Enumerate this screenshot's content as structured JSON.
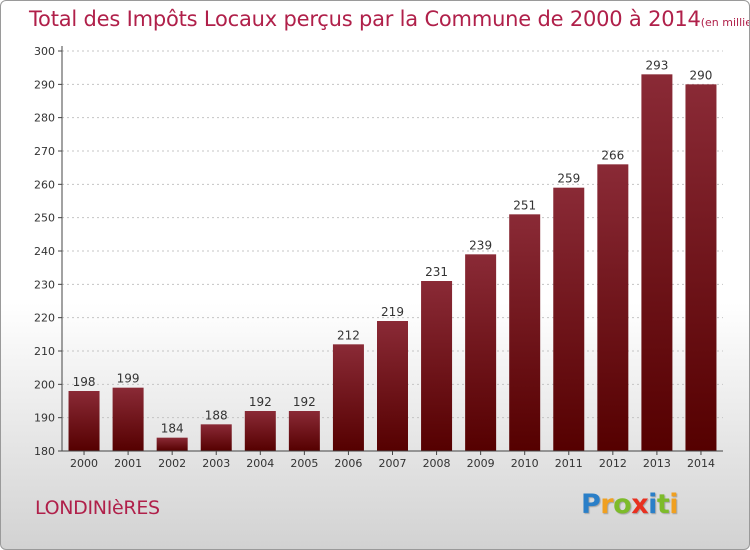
{
  "title": "Total des Impôts Locaux perçus par la Commune de 2000 à 2014",
  "unit_label": "(en milliers d'€)",
  "commune": "LONDINIèRES",
  "logo": {
    "letters": [
      "P",
      "r",
      "o",
      "x",
      "i",
      "t",
      "i"
    ],
    "colors": [
      "#2a7fc8",
      "#f0a020",
      "#7dbb2a",
      "#e83020",
      "#2a7fc8",
      "#7dbb2a",
      "#f0a020"
    ]
  },
  "colors": {
    "bar_top": "#8a2a36",
    "bar_bottom": "#550000",
    "accent": "#b0204a"
  },
  "chart_data": {
    "type": "bar",
    "categories": [
      "2000",
      "2001",
      "2002",
      "2003",
      "2004",
      "2005",
      "2006",
      "2007",
      "2008",
      "2009",
      "2010",
      "2011",
      "2012",
      "2013",
      "2014"
    ],
    "values": [
      198,
      199,
      184,
      188,
      192,
      192,
      212,
      219,
      231,
      239,
      251,
      259,
      266,
      293,
      290
    ],
    "ylim": [
      180,
      300
    ],
    "yticks": [
      180,
      190,
      200,
      210,
      220,
      230,
      240,
      250,
      260,
      270,
      280,
      290,
      300
    ],
    "grid": true,
    "legend": "none"
  }
}
